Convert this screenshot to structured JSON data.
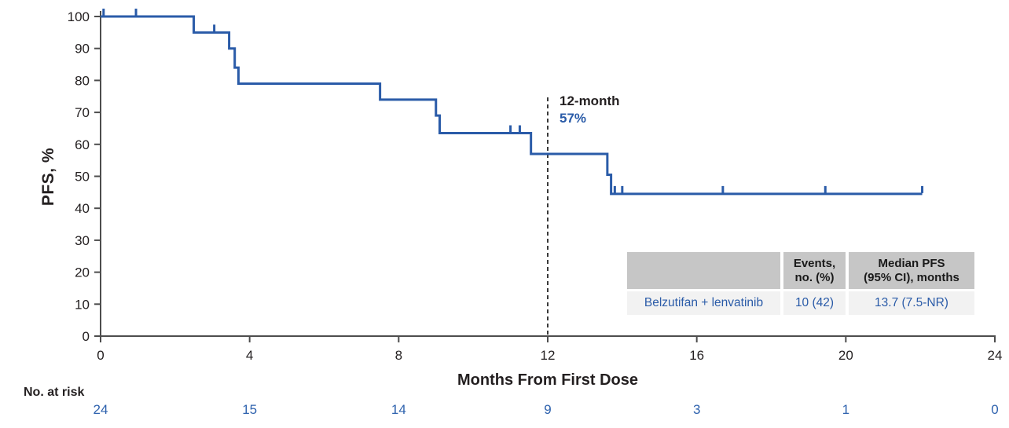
{
  "colors": {
    "curve": "#2a5ba8",
    "risk_numbers": "#2e62ae",
    "axis": "#4d4d4d",
    "text": "#231f20",
    "dashed_line": "#3a3a3a",
    "table_header_bg": "#c6c6c6",
    "table_row_bg": "#f2f2f2"
  },
  "chart_data": {
    "type": "line",
    "subtype": "kaplan-meier-step",
    "title": "",
    "xlabel": "Months From First Dose",
    "ylabel": "PFS, %",
    "xlim": [
      0,
      24
    ],
    "ylim": [
      0,
      100
    ],
    "x_ticks": [
      0,
      4,
      8,
      12,
      16,
      20,
      24
    ],
    "y_ticks": [
      0,
      10,
      20,
      30,
      40,
      50,
      60,
      70,
      80,
      90,
      100
    ],
    "grid": false,
    "series": [
      {
        "name": "Belzutifan + lenvatinib",
        "start": [
          0,
          100
        ],
        "events": [
          [
            2.5,
            95
          ],
          [
            3.45,
            90
          ],
          [
            3.6,
            84
          ],
          [
            3.7,
            79
          ],
          [
            7.5,
            74
          ],
          [
            9.0,
            69
          ],
          [
            9.1,
            63.5
          ],
          [
            11.55,
            57
          ],
          [
            13.6,
            50.5
          ],
          [
            13.7,
            44.5
          ]
        ],
        "end_time": 22.05,
        "censor_marks": [
          [
            0.08,
            100
          ],
          [
            0.95,
            100
          ],
          [
            3.05,
            95
          ],
          [
            11.0,
            63.5
          ],
          [
            11.25,
            63.5
          ],
          [
            13.8,
            44.5
          ],
          [
            14.0,
            44.5
          ],
          [
            16.7,
            44.5
          ],
          [
            19.45,
            44.5
          ],
          [
            22.05,
            44.5
          ]
        ]
      }
    ],
    "reference_line": {
      "x": 12,
      "label": "12-month",
      "value_label": "57%"
    },
    "at_risk": {
      "label": "No. at risk",
      "times": [
        0,
        4,
        8,
        12,
        16,
        20,
        24
      ],
      "values": [
        "24",
        "15",
        "14",
        "9",
        "3",
        "1",
        "0"
      ]
    },
    "summary_table": {
      "headers": [
        [
          "",
          ""
        ],
        [
          "Events,",
          "no. (%)"
        ],
        [
          "Median PFS",
          "(95% CI), months"
        ]
      ],
      "row": [
        "Belzutifan + lenvatinib",
        "10 (42)",
        "13.7 (7.5-NR)"
      ]
    }
  }
}
